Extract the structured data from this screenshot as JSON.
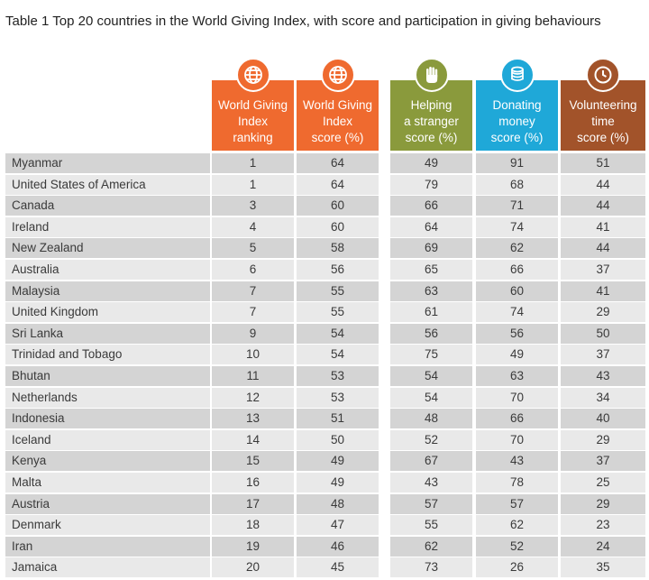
{
  "title": "Table 1  Top 20 countries in the World Giving Index, with score and participation in giving behaviours",
  "columns": [
    {
      "label": "World Giving\nIndex\nranking",
      "color": "#ef6a2f",
      "icon": "globe-icon"
    },
    {
      "label": "World Giving\nIndex\nscore (%)",
      "color": "#ef6a2f",
      "icon": "globe-icon"
    },
    {
      "label": "Helping\na stranger\nscore (%)",
      "color": "#8a9a3c",
      "icon": "hand-icon"
    },
    {
      "label": "Donating\nmoney\nscore (%)",
      "color": "#1fa8d8",
      "icon": "coins-icon"
    },
    {
      "label": "Volunteering\ntime\nscore (%)",
      "color": "#a2532a",
      "icon": "clock-icon"
    }
  ],
  "colors": {
    "row_odd": "#d4d4d4",
    "row_even": "#e9e9e9",
    "text": "#3a3a3a"
  },
  "chart_data": {
    "type": "table",
    "title": "Table 1  Top 20 countries in the World Giving Index, with score and participation in giving behaviours",
    "headers": [
      "World Giving Index ranking",
      "World Giving Index score (%)",
      "Helping a stranger score (%)",
      "Donating money score (%)",
      "Volunteering time score (%)"
    ],
    "rows": [
      {
        "country": "Myanmar",
        "ranking": "1",
        "wgi": "64",
        "helping": "49",
        "donating": "91",
        "volunteering": "51"
      },
      {
        "country": "United States of America",
        "ranking": "1",
        "wgi": "64",
        "helping": "79",
        "donating": "68",
        "volunteering": "44"
      },
      {
        "country": "Canada",
        "ranking": "3",
        "wgi": "60",
        "helping": "66",
        "donating": "71",
        "volunteering": "44"
      },
      {
        "country": "Ireland",
        "ranking": "4",
        "wgi": "60",
        "helping": "64",
        "donating": "74",
        "volunteering": "41"
      },
      {
        "country": "New Zealand",
        "ranking": "5",
        "wgi": "58",
        "helping": "69",
        "donating": "62",
        "volunteering": "44"
      },
      {
        "country": "Australia",
        "ranking": "6",
        "wgi": "56",
        "helping": "65",
        "donating": "66",
        "volunteering": "37"
      },
      {
        "country": "Malaysia",
        "ranking": "7",
        "wgi": "55",
        "helping": "63",
        "donating": "60",
        "volunteering": "41"
      },
      {
        "country": "United Kingdom",
        "ranking": "7",
        "wgi": "55",
        "helping": "61",
        "donating": "74",
        "volunteering": "29"
      },
      {
        "country": "Sri Lanka",
        "ranking": "9",
        "wgi": "54",
        "helping": "56",
        "donating": "56",
        "volunteering": "50"
      },
      {
        "country": "Trinidad and Tobago",
        "ranking": "10",
        "wgi": "54",
        "helping": "75",
        "donating": "49",
        "volunteering": "37"
      },
      {
        "country": "Bhutan",
        "ranking": "11",
        "wgi": "53",
        "helping": "54",
        "donating": "63",
        "volunteering": "43"
      },
      {
        "country": "Netherlands",
        "ranking": "12",
        "wgi": "53",
        "helping": "54",
        "donating": "70",
        "volunteering": "34"
      },
      {
        "country": "Indonesia",
        "ranking": "13",
        "wgi": "51",
        "helping": "48",
        "donating": "66",
        "volunteering": "40"
      },
      {
        "country": "Iceland",
        "ranking": "14",
        "wgi": "50",
        "helping": "52",
        "donating": "70",
        "volunteering": "29"
      },
      {
        "country": "Kenya",
        "ranking": "15",
        "wgi": "49",
        "helping": "67",
        "donating": "43",
        "volunteering": "37"
      },
      {
        "country": "Malta",
        "ranking": "16",
        "wgi": "49",
        "helping": "43",
        "donating": "78",
        "volunteering": "25"
      },
      {
        "country": "Austria",
        "ranking": "17",
        "wgi": "48",
        "helping": "57",
        "donating": "57",
        "volunteering": "29"
      },
      {
        "country": "Denmark",
        "ranking": "18",
        "wgi": "47",
        "helping": "55",
        "donating": "62",
        "volunteering": "23"
      },
      {
        "country": "Iran",
        "ranking": "19",
        "wgi": "46",
        "helping": "62",
        "donating": "52",
        "volunteering": "24"
      },
      {
        "country": "Jamaica",
        "ranking": "20",
        "wgi": "45",
        "helping": "73",
        "donating": "26",
        "volunteering": "35"
      }
    ]
  }
}
